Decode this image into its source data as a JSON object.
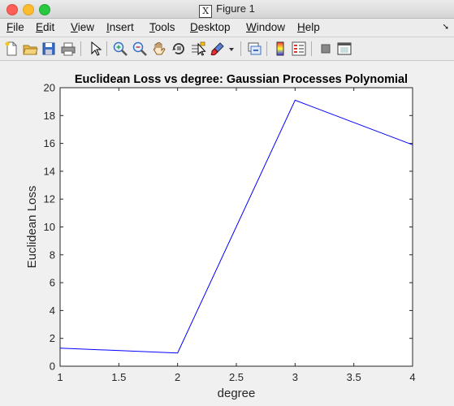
{
  "window": {
    "title": "Figure 1",
    "x11_glyph": "X"
  },
  "menu": {
    "items": [
      {
        "label": "File",
        "key": "F",
        "rest": "ile"
      },
      {
        "label": "Edit",
        "key": "E",
        "rest": "dit"
      },
      {
        "label": "View",
        "key": "V",
        "rest": "iew"
      },
      {
        "label": "Insert",
        "key": "I",
        "rest": "nsert"
      },
      {
        "label": "Tools",
        "key": "T",
        "rest": "ools"
      },
      {
        "label": "Desktop",
        "key": "D",
        "rest": "esktop"
      },
      {
        "label": "Window",
        "key": "W",
        "rest": "indow"
      },
      {
        "label": "Help",
        "key": "H",
        "rest": "elp"
      }
    ],
    "overflow_glyph": "➘"
  },
  "toolbar": {
    "icons": [
      "new-figure-icon",
      "open-file-icon",
      "save-icon",
      "print-icon",
      "pointer-icon",
      "zoom-in-icon",
      "zoom-out-icon",
      "pan-icon",
      "rotate-3d-icon",
      "data-cursor-icon",
      "brush-icon",
      "link-plot-icon",
      "colorbar-icon",
      "legend-icon",
      "hide-plot-tools-icon",
      "show-plot-tools-icon"
    ]
  },
  "chart_data": {
    "type": "line",
    "title": "Euclidean Loss vs degree: Gaussian Processes Polynomial",
    "xlabel": "degree",
    "ylabel": "Euclidean Loss",
    "x": [
      1,
      2,
      3,
      4
    ],
    "series": [
      {
        "values": [
          1.3,
          0.95,
          19.1,
          15.9
        ],
        "color": "#0000ff"
      }
    ],
    "xlim": [
      1,
      4
    ],
    "ylim": [
      0,
      20
    ],
    "xticks": [
      "1",
      "1.5",
      "2",
      "2.5",
      "3",
      "3.5",
      "4"
    ],
    "xtick_values": [
      1,
      1.5,
      2,
      2.5,
      3,
      3.5,
      4
    ],
    "yticks": [
      "0",
      "2",
      "4",
      "6",
      "8",
      "10",
      "12",
      "14",
      "16",
      "18",
      "20"
    ],
    "ytick_values": [
      0,
      2,
      4,
      6,
      8,
      10,
      12,
      14,
      16,
      18,
      20
    ],
    "grid": false
  }
}
